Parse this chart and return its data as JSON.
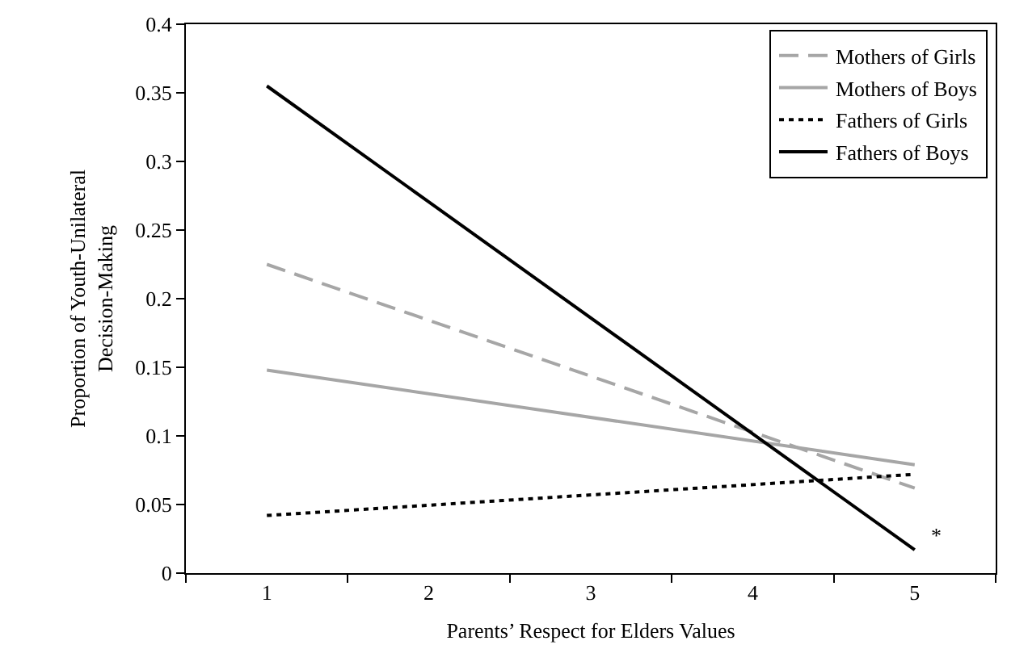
{
  "chart_data": {
    "type": "line",
    "xlabel": "Parents’ Respect for Elders Values",
    "ylabel": "Proportion of Youth-Unilateral\nDecision-Making",
    "x": [
      1,
      5
    ],
    "series": [
      {
        "name": "Mothers of Girls",
        "color": "#a6a6a6",
        "values": [
          0.225,
          0.062
        ],
        "line_style": "dashed"
      },
      {
        "name": "Mothers of Boys",
        "color": "#a6a6a6",
        "values": [
          0.148,
          0.079
        ],
        "line_style": "solid"
      },
      {
        "name": "Fathers of Girls",
        "color": "#000000",
        "values": [
          0.042,
          0.072
        ],
        "line_style": "dotted"
      },
      {
        "name": "Fathers of Boys",
        "color": "#000000",
        "values": [
          0.355,
          0.017
        ],
        "line_style": "solid"
      }
    ],
    "xlim": [
      0.5,
      5.5
    ],
    "xticks": [
      {
        "value": 0.5,
        "label": null
      },
      1,
      {
        "value": 1.5,
        "label": null
      },
      2,
      {
        "value": 2.5,
        "label": null
      },
      3,
      {
        "value": 3.5,
        "label": null
      },
      4,
      {
        "value": 4.5,
        "label": null
      },
      5,
      {
        "value": 5.5,
        "label": null
      }
    ],
    "ylim": [
      0,
      0.4
    ],
    "yticks": [
      0,
      0.05,
      0.1,
      0.15,
      0.2,
      0.25,
      0.3,
      0.35,
      0.4
    ],
    "annotations": [
      {
        "text": "*",
        "x": 5,
        "y": 0.017
      }
    ],
    "grid": false,
    "legend": "top right",
    "marker": "none"
  }
}
